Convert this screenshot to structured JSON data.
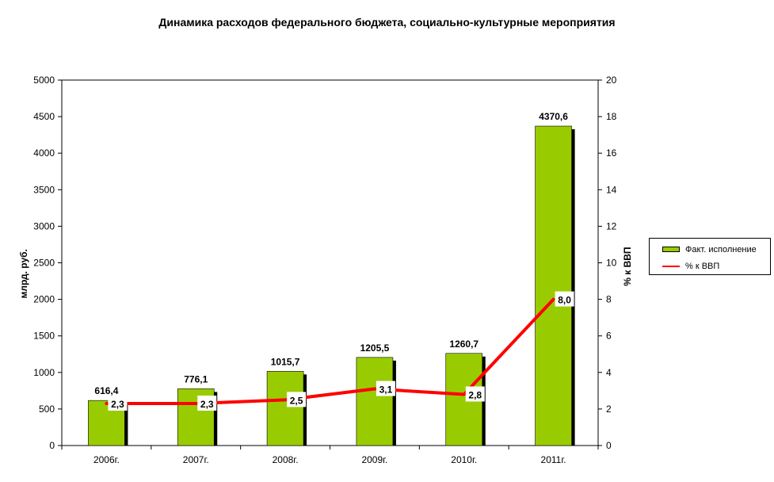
{
  "chart_data": {
    "type": "bar",
    "title": "Динамика расходов федерального бюджета, социально-культурные мероприятия",
    "categories": [
      "2006г.",
      "2007г.",
      "2008г.",
      "2009г.",
      "2010г.",
      "2011г."
    ],
    "series": [
      {
        "name": "Факт. исполнение",
        "type": "bar",
        "axis": "left",
        "values": [
          616.4,
          776.1,
          1015.7,
          1205.5,
          1260.7,
          4370.6
        ],
        "labels": [
          "616,4",
          "776,1",
          "1015,7",
          "1205,5",
          "1260,7",
          "4370,6"
        ],
        "color": "#99cc00"
      },
      {
        "name": "% к ВВП",
        "type": "line",
        "axis": "right",
        "values": [
          2.3,
          2.3,
          2.5,
          3.1,
          2.8,
          8.0
        ],
        "labels": [
          "2,3",
          "2,3",
          "2,5",
          "3,1",
          "2,8",
          "8,0"
        ],
        "color": "#ff0000"
      }
    ],
    "ylabel": "млрд. руб.",
    "y2label": "% к ВВП",
    "ylim": [
      0,
      5000
    ],
    "y2lim": [
      0,
      20
    ],
    "yticks": [
      0,
      500,
      1000,
      1500,
      2000,
      2500,
      3000,
      3500,
      4000,
      4500,
      5000
    ],
    "y2ticks": [
      0,
      2,
      4,
      6,
      8,
      10,
      12,
      14,
      16,
      18,
      20
    ],
    "grid": false,
    "legend_position": "right"
  }
}
